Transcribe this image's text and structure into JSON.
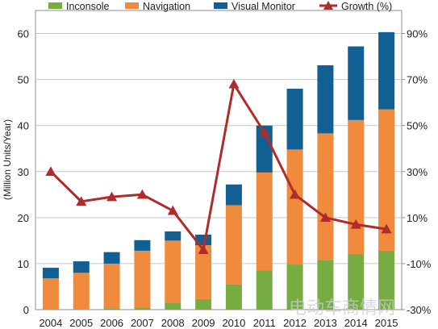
{
  "chart_data": {
    "type": "bar",
    "stacked": true,
    "categories": [
      "2004",
      "2005",
      "2006",
      "2007",
      "2008",
      "2009",
      "2010",
      "2011",
      "2012",
      "2013",
      "2014",
      "2015"
    ],
    "series": [
      {
        "name": "Inconsole",
        "color": "#77ac43",
        "values": [
          0,
          0,
          0.3,
          0.5,
          1.5,
          2.3,
          5.5,
          8.5,
          9.8,
          10.8,
          12,
          12.8
        ]
      },
      {
        "name": "Navigation",
        "color": "#f08a3c",
        "values": [
          6.8,
          8,
          9.7,
          12.3,
          13.5,
          11.7,
          17.2,
          21.3,
          25,
          27.5,
          29.2,
          30.7
        ]
      },
      {
        "name": "Visual Monitor",
        "color": "#125f94",
        "values": [
          2.3,
          2.5,
          2.5,
          2.3,
          2,
          2.3,
          4.5,
          10.2,
          13.2,
          14.8,
          16,
          16.8
        ]
      }
    ],
    "line": {
      "name": "Growth (%)",
      "color": "#b02b2b",
      "values": [
        30,
        17,
        19,
        20,
        13,
        -4,
        68,
        47,
        20,
        10,
        7,
        5
      ]
    },
    "ylabel": "(Million Units/Year)",
    "ylim": [
      0,
      65
    ],
    "yticks": [
      "0",
      "10",
      "20",
      "30",
      "40",
      "50",
      "60"
    ],
    "y2lim": [
      -30,
      100
    ],
    "y2ticks": [
      "-30%",
      "-10%",
      "10%",
      "30%",
      "50%",
      "70%",
      "90%"
    ],
    "grid": "horizontal",
    "legend": "top"
  },
  "watermark": "电动车商情网"
}
